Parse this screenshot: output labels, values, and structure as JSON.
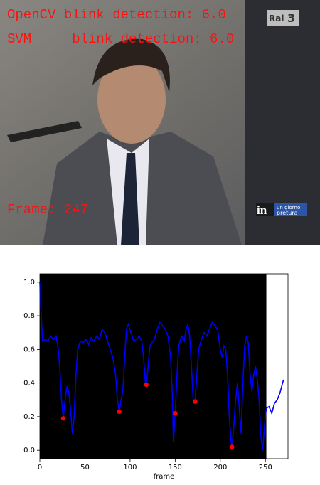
{
  "video_overlay": {
    "lines": [
      "OpenCV blink detection: 6.0",
      "SVM     blink detection: 6.0"
    ],
    "frame": "Frame: 247",
    "channel": [
      "Rai",
      "3"
    ],
    "show_logo": [
      "in",
      "un giorno",
      "pretura"
    ]
  },
  "chart_data": {
    "type": "line",
    "xlabel": "frame",
    "xlim": [
      0,
      275
    ],
    "ylim": [
      -0.05,
      1.05
    ],
    "xticks": [
      0,
      50,
      100,
      150,
      200,
      250
    ],
    "yticks": [
      {
        "value": 0,
        "label": "0.0"
      },
      {
        "value": 0.2,
        "label": "0.2"
      },
      {
        "value": 0.4,
        "label": "0.4"
      },
      {
        "value": 0.6,
        "label": "0.6"
      },
      {
        "value": 0.8,
        "label": "0.8"
      },
      {
        "value": 1,
        "label": "1.0"
      }
    ],
    "background": {
      "color": "#000000",
      "until": 251
    },
    "series": [
      {
        "kind": "line",
        "color": "#0000ff",
        "x": [
          0,
          2,
          3,
          6,
          9,
          12,
          15,
          18,
          20,
          22,
          24,
          26,
          28,
          30,
          32,
          34,
          36,
          38,
          40,
          42,
          45,
          48,
          51,
          54,
          57,
          60,
          63,
          66,
          69,
          72,
          75,
          78,
          81,
          84,
          86,
          88,
          90,
          92,
          94,
          96,
          98,
          101,
          104,
          107,
          110,
          113,
          115,
          117,
          118,
          120,
          122,
          124,
          127,
          130,
          133,
          136,
          139,
          142,
          145,
          147,
          148,
          150,
          152,
          154,
          157,
          160,
          162,
          164,
          166,
          168,
          170,
          172,
          174,
          176,
          179,
          182,
          185,
          188,
          191,
          194,
          197,
          200,
          202,
          204,
          206,
          208,
          210,
          212,
          213,
          215,
          217,
          219,
          221,
          223,
          225,
          227,
          229,
          231,
          233,
          235,
          237,
          239,
          241,
          243,
          245,
          247,
          249,
          251,
          254,
          257,
          260,
          263,
          266,
          268,
          270
        ],
        "values": [
          1.0,
          0.75,
          0.65,
          0.66,
          0.65,
          0.68,
          0.66,
          0.68,
          0.62,
          0.5,
          0.3,
          0.19,
          0.3,
          0.38,
          0.35,
          0.25,
          0.1,
          0.2,
          0.45,
          0.6,
          0.65,
          0.64,
          0.66,
          0.63,
          0.67,
          0.65,
          0.68,
          0.66,
          0.72,
          0.7,
          0.65,
          0.6,
          0.55,
          0.45,
          0.3,
          0.23,
          0.3,
          0.35,
          0.55,
          0.72,
          0.75,
          0.7,
          0.65,
          0.66,
          0.68,
          0.65,
          0.55,
          0.4,
          0.39,
          0.5,
          0.62,
          0.64,
          0.66,
          0.72,
          0.76,
          0.74,
          0.72,
          0.68,
          0.55,
          0.3,
          0.05,
          0.22,
          0.45,
          0.62,
          0.68,
          0.65,
          0.72,
          0.75,
          0.68,
          0.5,
          0.3,
          0.29,
          0.45,
          0.6,
          0.66,
          0.7,
          0.68,
          0.72,
          0.76,
          0.74,
          0.72,
          0.6,
          0.55,
          0.62,
          0.6,
          0.45,
          0.2,
          0.05,
          0.02,
          0.15,
          0.3,
          0.4,
          0.25,
          0.1,
          0.4,
          0.62,
          0.68,
          0.64,
          0.45,
          0.35,
          0.45,
          0.5,
          0.42,
          0.3,
          0.08,
          0.0,
          0.15,
          0.25,
          0.26,
          0.22,
          0.28,
          0.3,
          0.34,
          0.38,
          0.42
        ]
      },
      {
        "kind": "scatter",
        "color": "#ff0000",
        "x": [
          26,
          88,
          118,
          150,
          172,
          213
        ],
        "values": [
          0.19,
          0.23,
          0.39,
          0.22,
          0.29,
          0.02
        ]
      }
    ]
  }
}
